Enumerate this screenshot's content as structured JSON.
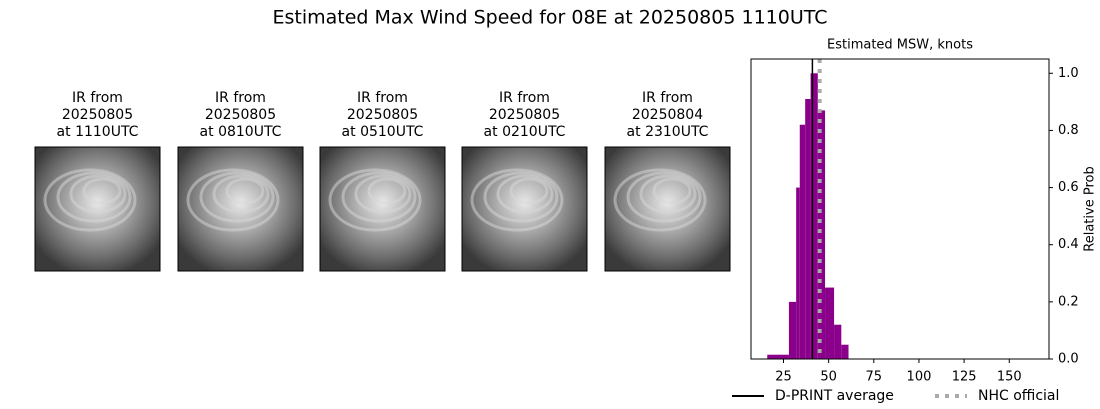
{
  "title": "Estimated Max Wind Speed for 08E at 20250805 1110UTC",
  "images": [
    {
      "lines": [
        "IR from",
        "20250805",
        "at 1110UTC"
      ]
    },
    {
      "lines": [
        "IR from",
        "20250805",
        "at 0810UTC"
      ]
    },
    {
      "lines": [
        "IR from",
        "20250805",
        "at 0510UTC"
      ]
    },
    {
      "lines": [
        "IR from",
        "20250805",
        "at 0210UTC"
      ]
    },
    {
      "lines": [
        "IR from",
        "20250804",
        "at 2310UTC"
      ]
    }
  ],
  "chart_data": {
    "type": "histogram",
    "title": "Estimated MSW, knots",
    "bins": [
      16,
      28,
      32,
      34,
      37,
      40,
      44,
      48,
      53,
      57,
      61
    ],
    "values": [
      0.015,
      0.2,
      0.6,
      0.82,
      0.91,
      1.0,
      0.87,
      0.25,
      0.12,
      0.05
    ],
    "color": "#8b008b",
    "xlim": [
      7,
      172
    ],
    "xticks": [
      25,
      50,
      75,
      100,
      125,
      150
    ],
    "ylim": [
      0,
      1.05
    ],
    "yticks": [
      {
        "value": 0,
        "label": "0.0"
      },
      0.2,
      0.4,
      0.6,
      0.8,
      {
        "value": 1,
        "label": "1.0"
      }
    ],
    "y_label": "Relative Prob",
    "y_axis_side": "right",
    "ref_lines": [
      {
        "name": "D-PRINT average",
        "value": 41,
        "color": "#000000",
        "style": "solid"
      },
      {
        "name": "NHC official",
        "value": 45,
        "color": "#aaaaaa",
        "style": "dotted"
      }
    ],
    "legend": "bottom"
  }
}
